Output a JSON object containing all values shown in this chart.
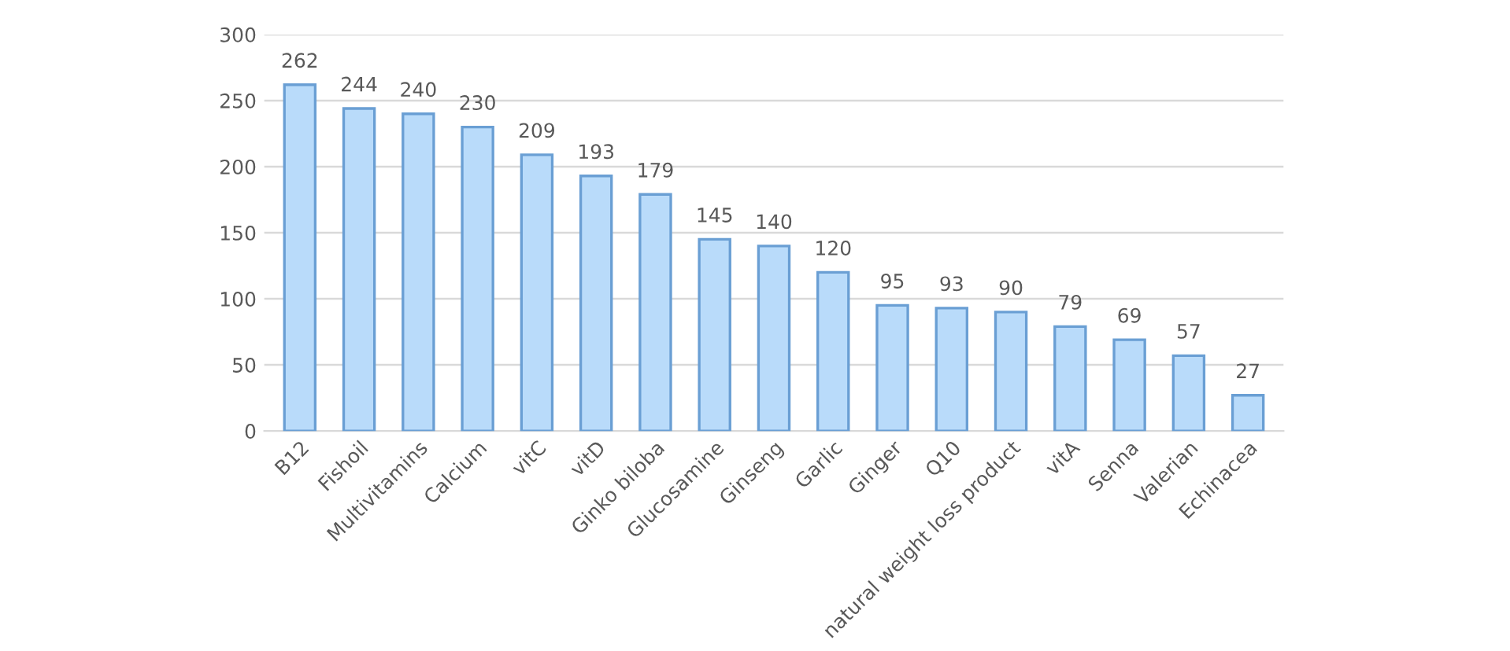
{
  "chart_data": {
    "type": "bar",
    "categories": [
      "B12",
      "Fishoil",
      "Multivitamins",
      "Calcium",
      "vitC",
      "vitD",
      "Ginko biloba",
      "Glucosamine",
      "Ginseng",
      "Garlic",
      "Ginger",
      "Q10",
      "natural weight loss product",
      "vitA",
      "Senna",
      "Valerian",
      "Echinacea"
    ],
    "values": [
      262,
      244,
      240,
      230,
      209,
      193,
      179,
      145,
      140,
      120,
      95,
      93,
      90,
      79,
      69,
      57,
      27
    ],
    "color": "#b9dbfa",
    "ylim": [
      0,
      300
    ],
    "yticks": [
      0,
      50,
      100,
      150,
      200,
      250,
      300
    ],
    "grid": "y",
    "data_labels": true,
    "legend": false
  }
}
